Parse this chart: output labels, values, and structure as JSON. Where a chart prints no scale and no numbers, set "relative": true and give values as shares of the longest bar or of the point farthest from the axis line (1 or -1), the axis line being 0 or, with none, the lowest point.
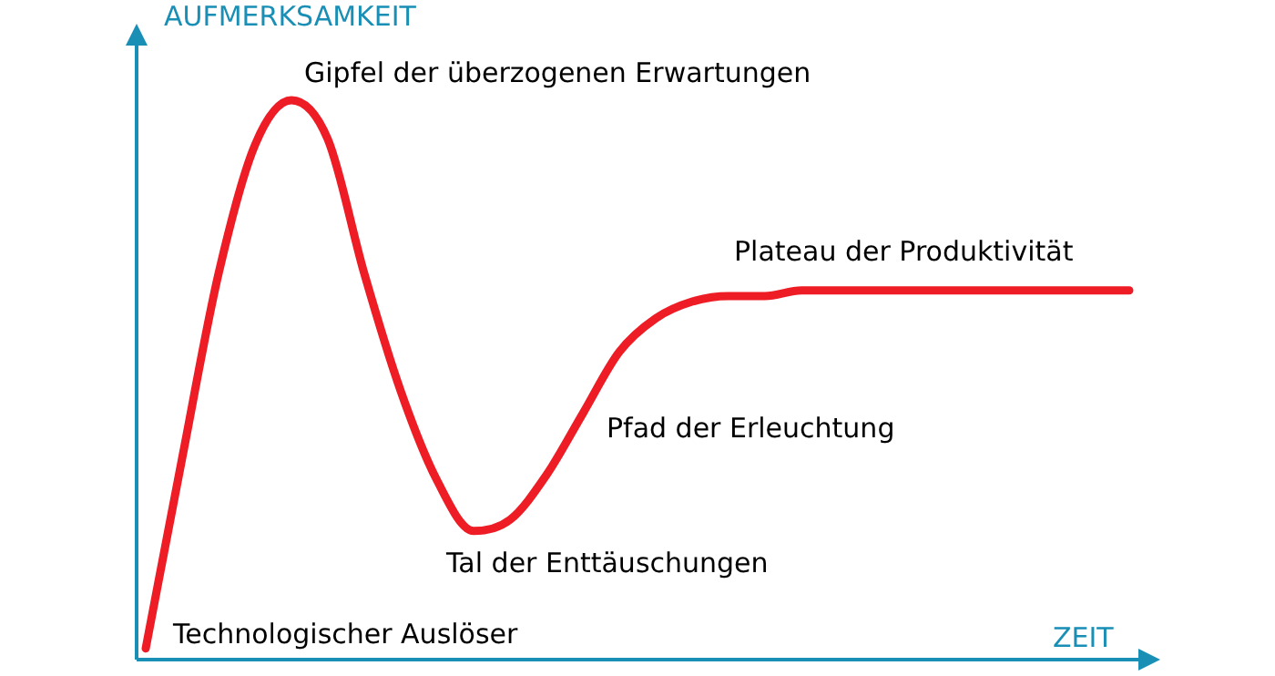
{
  "chart_data": {
    "type": "line",
    "relative": true,
    "xlabel": "ZEIT",
    "ylabel": "AUFMERKSAMKEIT",
    "marker": "none",
    "line_style": "solid",
    "legend": false,
    "categories": [
      null,
      null,
      null,
      null,
      null,
      null,
      null,
      null,
      null,
      null,
      null,
      null,
      null,
      null,
      null,
      null,
      null,
      null,
      null,
      null,
      null,
      null,
      null,
      null,
      null,
      null,
      null,
      null
    ],
    "series": [
      {
        "color": "#ee1c25",
        "values": [
          0.02,
          0.36,
          0.69,
          0.92,
          1,
          0.93,
          0.69,
          0.48,
          0.32,
          0.23,
          0.25,
          0.33,
          0.44,
          0.55,
          0.61,
          0.64,
          0.65,
          0.65,
          0.66,
          0.66,
          0.66,
          0.66,
          0.66,
          0.66,
          0.66,
          0.66,
          0.66,
          0.66
        ]
      }
    ],
    "annotations": [
      "Gipfel der überzogenen Erwartungen",
      "Plateau der Produktivität",
      "Pfad der Erleuchtung",
      "Tal der Enttäuschungen",
      "Technologischer Auslöser"
    ]
  }
}
